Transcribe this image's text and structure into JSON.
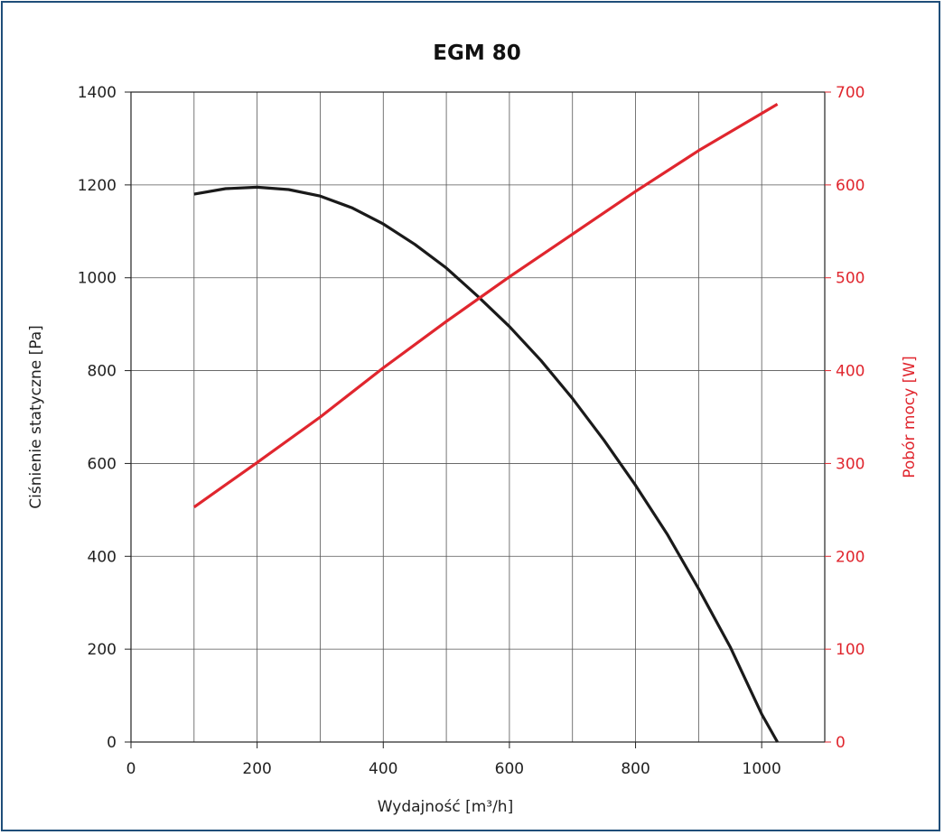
{
  "chart_data": {
    "type": "line",
    "title": "EGM 80",
    "xlabel": "Wydajność [m³/h]",
    "ylabel": "Ciśnienie statyczne [Pa]",
    "y2label": "Pobór mocy [W]",
    "xlim": [
      0,
      1100
    ],
    "ylim": [
      0,
      1400
    ],
    "y2lim": [
      0,
      700
    ],
    "x_ticks": [
      0,
      200,
      400,
      600,
      800,
      1000
    ],
    "y_ticks": [
      0,
      200,
      400,
      600,
      800,
      1000,
      1200,
      1400
    ],
    "y2_ticks": [
      0,
      100,
      200,
      300,
      400,
      500,
      600,
      700
    ],
    "x_gridlines": [
      100,
      200,
      300,
      400,
      500,
      600,
      700,
      800,
      900,
      1000
    ],
    "grid": true,
    "series": [
      {
        "axis": "left",
        "color": "#1a1a1a",
        "x": [
          100,
          150,
          200,
          250,
          300,
          350,
          400,
          450,
          500,
          550,
          600,
          650,
          700,
          750,
          800,
          850,
          900,
          950,
          1000,
          1025
        ],
        "y": [
          1180,
          1192,
          1195,
          1190,
          1176,
          1151,
          1116,
          1072,
          1021,
          960,
          895,
          822,
          740,
          650,
          553,
          448,
          330,
          205,
          60,
          0
        ]
      },
      {
        "axis": "right",
        "color": "#e0262e",
        "x": [
          100,
          200,
          300,
          400,
          500,
          600,
          700,
          800,
          900,
          1025
        ],
        "y": [
          253,
          301,
          350,
          403,
          453,
          501,
          547,
          593,
          637,
          687
        ]
      }
    ]
  }
}
